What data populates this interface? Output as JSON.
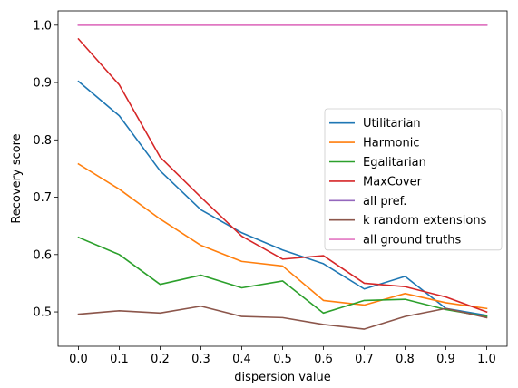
{
  "chart_data": {
    "type": "line",
    "xlabel": "dispersion value",
    "ylabel": "Recovery score",
    "x": [
      0.0,
      0.1,
      0.2,
      0.3,
      0.4,
      0.5,
      0.6,
      0.7,
      0.8,
      0.9,
      1.0
    ],
    "xticks": [
      "0.0",
      "0.1",
      "0.2",
      "0.3",
      "0.4",
      "0.5",
      "0.6",
      "0.7",
      "0.8",
      "0.9",
      "1.0"
    ],
    "yticks": [
      "0.5",
      "0.6",
      "0.7",
      "0.8",
      "0.9",
      "1.0"
    ],
    "xlim": [
      -0.05,
      1.05
    ],
    "ylim": [
      0.44,
      1.025
    ],
    "grid": false,
    "legend_position": "center-right",
    "series": [
      {
        "name": "Utilitarian",
        "color": "#1f77b4",
        "values": [
          0.902,
          0.842,
          0.746,
          0.678,
          0.638,
          0.608,
          0.584,
          0.54,
          0.562,
          0.506,
          0.494
        ]
      },
      {
        "name": "Harmonic",
        "color": "#ff7f0e",
        "values": [
          0.758,
          0.714,
          0.662,
          0.616,
          0.588,
          0.58,
          0.52,
          0.512,
          0.532,
          0.516,
          0.506
        ]
      },
      {
        "name": "Egalitarian",
        "color": "#2ca02c",
        "values": [
          0.63,
          0.6,
          0.548,
          0.564,
          0.542,
          0.554,
          0.498,
          0.52,
          0.522,
          0.504,
          0.492
        ]
      },
      {
        "name": "MaxCover",
        "color": "#d62728",
        "values": [
          0.976,
          0.896,
          0.77,
          0.7,
          0.632,
          0.592,
          0.598,
          0.55,
          0.544,
          0.526,
          0.5
        ]
      },
      {
        "name": "all pref.",
        "color": "#9467bd",
        "values": [
          1.0,
          1.0,
          1.0,
          1.0,
          1.0,
          1.0,
          1.0,
          1.0,
          1.0,
          1.0,
          1.0
        ]
      },
      {
        "name": "k random extensions",
        "color": "#8c564b",
        "values": [
          0.496,
          0.502,
          0.498,
          0.51,
          0.492,
          0.49,
          0.478,
          0.47,
          0.492,
          0.506,
          0.49
        ]
      },
      {
        "name": "all ground truths",
        "color": "#e377c2",
        "values": [
          1.0,
          1.0,
          1.0,
          1.0,
          1.0,
          1.0,
          1.0,
          1.0,
          1.0,
          1.0,
          1.0
        ]
      }
    ]
  }
}
